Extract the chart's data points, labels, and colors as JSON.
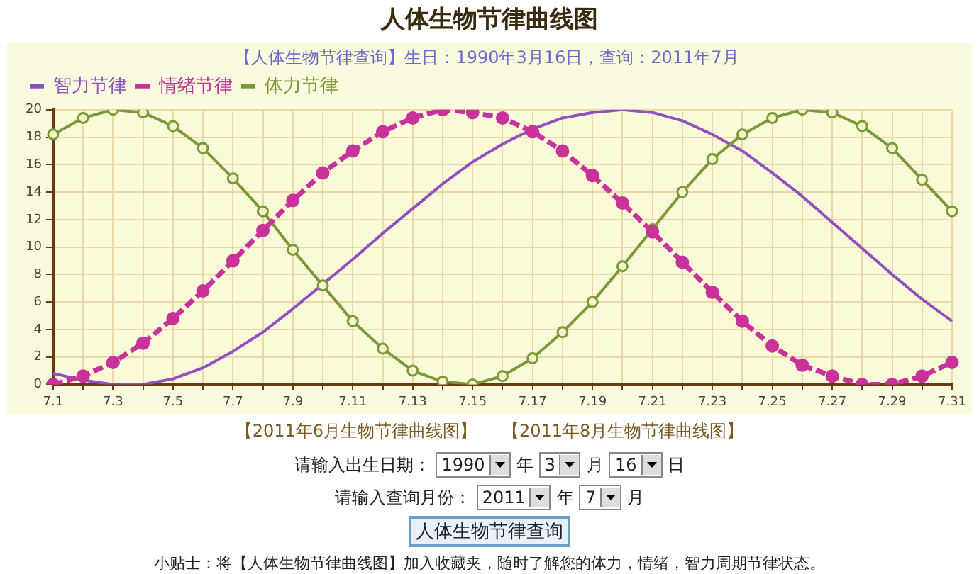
{
  "chart_data": {
    "type": "line",
    "title": "人体生物节律曲线图",
    "subtitle": "【人体生物节律查询】生日：1990年3月16日，查询：2011年7月",
    "categories": [
      "7.1",
      null,
      "7.3",
      null,
      "7.5",
      null,
      "7.7",
      null,
      "7.9",
      null,
      "7.11",
      null,
      "7.13",
      null,
      "7.15",
      null,
      "7.17",
      null,
      "7.19",
      null,
      "7.21",
      null,
      "7.23",
      null,
      "7.25",
      null,
      "7.27",
      null,
      "7.29",
      null,
      "7.31"
    ],
    "series": [
      {
        "name": "智力节律",
        "color": "#9050c0",
        "marker": "none",
        "line_style": "solid",
        "values": [
          0.8,
          0.3,
          0.0,
          0.0,
          0.4,
          1.2,
          2.4,
          3.8,
          5.5,
          7.3,
          9.1,
          11.0,
          12.8,
          14.6,
          16.2,
          17.5,
          18.6,
          19.4,
          19.8,
          20.0,
          19.8,
          19.2,
          18.2,
          17.0,
          15.4,
          13.7,
          11.8,
          9.9,
          8.0,
          6.2,
          4.6
        ]
      },
      {
        "name": "情绪节律",
        "color": "#c8329a",
        "marker": "circle",
        "line_style": "dashed",
        "values": [
          0.0,
          0.6,
          1.6,
          3.0,
          4.8,
          6.8,
          9.0,
          11.2,
          13.4,
          15.4,
          17.0,
          18.4,
          19.4,
          20.0,
          19.8,
          19.4,
          18.4,
          17.0,
          15.2,
          13.2,
          11.1,
          8.9,
          6.7,
          4.6,
          2.8,
          1.4,
          0.6,
          0.0,
          0.0,
          0.6,
          1.6
        ]
      },
      {
        "name": "体力节律",
        "color": "#7a9a3a",
        "marker": "circle",
        "line_style": "solid",
        "values": [
          18.2,
          19.4,
          20.0,
          19.8,
          18.8,
          17.2,
          15.0,
          12.6,
          9.8,
          7.2,
          4.6,
          2.6,
          1.0,
          0.2,
          0.0,
          0.6,
          1.9,
          3.8,
          6.0,
          8.6,
          11.3,
          14.0,
          16.4,
          18.2,
          19.4,
          20.0,
          19.8,
          18.8,
          17.2,
          14.9,
          12.6
        ]
      }
    ],
    "ylim": [
      0,
      20
    ],
    "yticks": [
      0,
      2,
      4,
      6,
      8,
      10,
      12,
      14,
      16,
      18,
      20
    ],
    "grid": true,
    "legend": "top left",
    "annotations": [
      "【2011年6月生物节律曲线图】",
      "【2011年8月生物节律曲线图】",
      "请输入出生日期：",
      "1990",
      "年",
      "3",
      "月",
      "16",
      "日",
      "请输入查询月份：",
      "2011",
      "年",
      "7",
      "月",
      "人体生物节律查询",
      "小贴士：将【人体生物节律曲线图】加入收藏夹，随时了解您的体力，情绪，智力周期节律状态。"
    ]
  }
}
